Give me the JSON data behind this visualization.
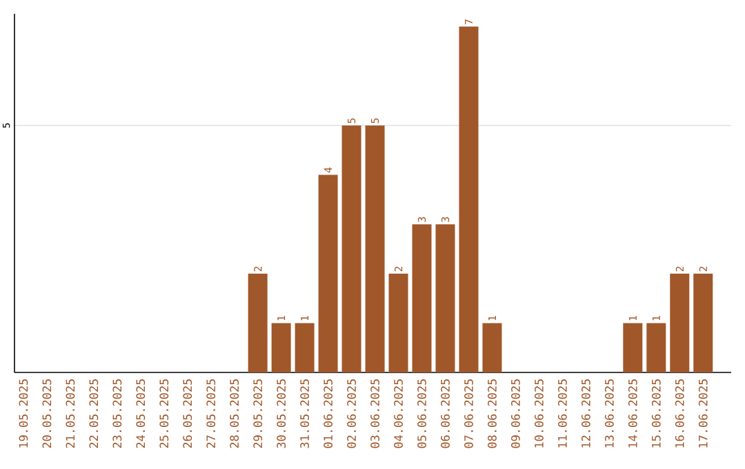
{
  "chart_data": {
    "type": "bar",
    "color": "#a0572a",
    "categories": [
      "19.05.2025",
      "20.05.2025",
      "21.05.2025",
      "22.05.2025",
      "23.05.2025",
      "24.05.2025",
      "25.05.2025",
      "26.05.2025",
      "27.05.2025",
      "28.05.2025",
      "29.05.2025",
      "30.05.2025",
      "31.05.2025",
      "01.06.2025",
      "02.06.2025",
      "03.06.2025",
      "04.06.2025",
      "05.06.2025",
      "06.06.2025",
      "07.06.2025",
      "08.06.2025",
      "09.06.2025",
      "10.06.2025",
      "11.06.2025",
      "12.06.2025",
      "13.06.2025",
      "14.06.2025",
      "15.06.2025",
      "16.06.2025",
      "17.06.2025"
    ],
    "values": [
      0,
      0,
      0,
      0,
      0,
      0,
      0,
      0,
      0,
      0,
      2,
      1,
      1,
      4,
      5,
      5,
      2,
      3,
      3,
      7,
      1,
      0,
      0,
      0,
      0,
      0,
      1,
      1,
      2,
      2
    ],
    "value_labels": [
      null,
      null,
      null,
      null,
      null,
      null,
      null,
      null,
      null,
      null,
      "2",
      "1",
      "1",
      "4",
      "5",
      "5",
      "2",
      "3",
      "3",
      "7",
      "1",
      null,
      null,
      null,
      null,
      null,
      "1",
      "1",
      "2",
      "2"
    ],
    "ylim": [
      0,
      7.26
    ],
    "yticks": [
      5
    ],
    "grid": "y"
  }
}
